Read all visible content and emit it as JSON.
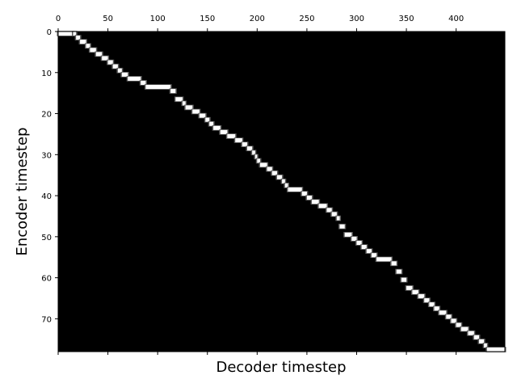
{
  "chart_data": {
    "type": "heatmap",
    "colormap": "gray",
    "xlabel": "Decoder timestep",
    "ylabel": "Encoder timestep",
    "x_tick_position": "top",
    "xlim": [
      0,
      449
    ],
    "ylim": [
      0,
      78
    ],
    "y_inverted": true,
    "x_ticks": [
      0,
      50,
      100,
      150,
      200,
      250,
      300,
      350,
      400
    ],
    "y_ticks": [
      0,
      10,
      20,
      30,
      40,
      50,
      60,
      70
    ],
    "alignment_path": [
      [
        0,
        0
      ],
      [
        15,
        0
      ],
      [
        18,
        1
      ],
      [
        22,
        2
      ],
      [
        28,
        3
      ],
      [
        32,
        4
      ],
      [
        38,
        5
      ],
      [
        44,
        6
      ],
      [
        50,
        7
      ],
      [
        55,
        8
      ],
      [
        60,
        9
      ],
      [
        64,
        10
      ],
      [
        70,
        11
      ],
      [
        83,
        12
      ],
      [
        88,
        13
      ],
      [
        113,
        14
      ],
      [
        118,
        16
      ],
      [
        125,
        17
      ],
      [
        128,
        18
      ],
      [
        135,
        19
      ],
      [
        142,
        20
      ],
      [
        148,
        21
      ],
      [
        152,
        22
      ],
      [
        156,
        23
      ],
      [
        163,
        24
      ],
      [
        170,
        25
      ],
      [
        178,
        26
      ],
      [
        185,
        27
      ],
      [
        190,
        28
      ],
      [
        195,
        29
      ],
      [
        198,
        30
      ],
      [
        200,
        31
      ],
      [
        203,
        32
      ],
      [
        210,
        33
      ],
      [
        215,
        34
      ],
      [
        220,
        35
      ],
      [
        225,
        36
      ],
      [
        228,
        37
      ],
      [
        231,
        38
      ],
      [
        245,
        39
      ],
      [
        250,
        40
      ],
      [
        255,
        41
      ],
      [
        262,
        42
      ],
      [
        270,
        43
      ],
      [
        275,
        44
      ],
      [
        280,
        45
      ],
      [
        283,
        47
      ],
      [
        288,
        49
      ],
      [
        295,
        50
      ],
      [
        300,
        51
      ],
      [
        305,
        52
      ],
      [
        310,
        53
      ],
      [
        315,
        54
      ],
      [
        320,
        55
      ],
      [
        335,
        56
      ],
      [
        340,
        58
      ],
      [
        345,
        60
      ],
      [
        350,
        62
      ],
      [
        356,
        63
      ],
      [
        362,
        64
      ],
      [
        368,
        65
      ],
      [
        373,
        66
      ],
      [
        378,
        67
      ],
      [
        383,
        68
      ],
      [
        390,
        69
      ],
      [
        395,
        70
      ],
      [
        400,
        71
      ],
      [
        405,
        72
      ],
      [
        412,
        73
      ],
      [
        418,
        74
      ],
      [
        423,
        75
      ],
      [
        428,
        76
      ],
      [
        431,
        77
      ],
      [
        449,
        77
      ]
    ]
  }
}
